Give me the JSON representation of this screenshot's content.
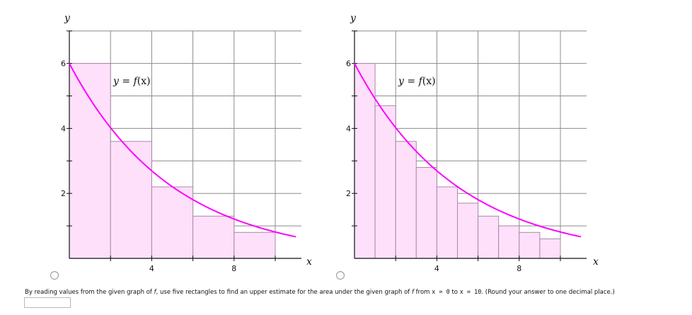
{
  "chart_data": [
    {
      "type": "area",
      "function": "f(x) = 6·e^(-x/5)",
      "curve_label": {
        "lhs": "y",
        "eq": " = ",
        "fname": "f",
        "arg": "(x)"
      },
      "xlabel": "x",
      "ylabel": "y",
      "xlim": [
        0,
        11
      ],
      "ylim": [
        0,
        7
      ],
      "x_ticks": [
        4,
        8
      ],
      "y_ticks": [
        2,
        4,
        6
      ],
      "grid_x": [
        2,
        4,
        6,
        8,
        10
      ],
      "grid_y": [
        1,
        2,
        3,
        4,
        5,
        6,
        7
      ],
      "curve_color": "#ff00ff",
      "rect_fill": "#ffe0fb",
      "rect_stroke": "#a88aa6",
      "rectangles": [
        {
          "x0": 0,
          "x1": 2,
          "height": 6.0
        },
        {
          "x0": 2,
          "x1": 4,
          "height": 3.6
        },
        {
          "x0": 4,
          "x1": 6,
          "height": 2.2
        },
        {
          "x0": 6,
          "x1": 8,
          "height": 1.3
        },
        {
          "x0": 8,
          "x1": 10,
          "height": 0.8
        }
      ]
    },
    {
      "type": "area",
      "function": "f(x) = 6·e^(-x/5)",
      "curve_label": {
        "lhs": "y",
        "eq": " = ",
        "fname": "f",
        "arg": "(x)"
      },
      "xlabel": "x",
      "ylabel": "y",
      "xlim": [
        0,
        11
      ],
      "ylim": [
        0,
        7
      ],
      "x_ticks": [
        4,
        8
      ],
      "y_ticks": [
        2,
        4,
        6
      ],
      "grid_x": [
        2,
        4,
        6,
        8,
        10
      ],
      "grid_y": [
        1,
        2,
        3,
        4,
        5,
        6,
        7
      ],
      "curve_color": "#ff00ff",
      "rect_fill": "#ffe0fb",
      "rect_stroke": "#a88aa6",
      "rectangles": [
        {
          "x0": 0,
          "x1": 1,
          "height": 6.0
        },
        {
          "x0": 1,
          "x1": 2,
          "height": 4.7
        },
        {
          "x0": 2,
          "x1": 3,
          "height": 3.6
        },
        {
          "x0": 3,
          "x1": 4,
          "height": 2.8
        },
        {
          "x0": 4,
          "x1": 5,
          "height": 2.2
        },
        {
          "x0": 5,
          "x1": 6,
          "height": 1.7
        },
        {
          "x0": 6,
          "x1": 7,
          "height": 1.3
        },
        {
          "x0": 7,
          "x1": 8,
          "height": 1.0
        },
        {
          "x0": 8,
          "x1": 9,
          "height": 0.8
        },
        {
          "x0": 9,
          "x1": 10,
          "height": 0.6
        }
      ]
    }
  ],
  "question": {
    "p1": "By reading values from the given graph of ",
    "f1": "f",
    "p2": ", use five rectangles to find an upper estimate for the area under the given graph of ",
    "f2": "f",
    "p3": " from  ",
    "x0": "x = 0",
    "p4": "  to  ",
    "x1": "x = 10",
    "p5": ".  (Round your answer to one decimal place.)"
  },
  "answer": {
    "value": ""
  }
}
